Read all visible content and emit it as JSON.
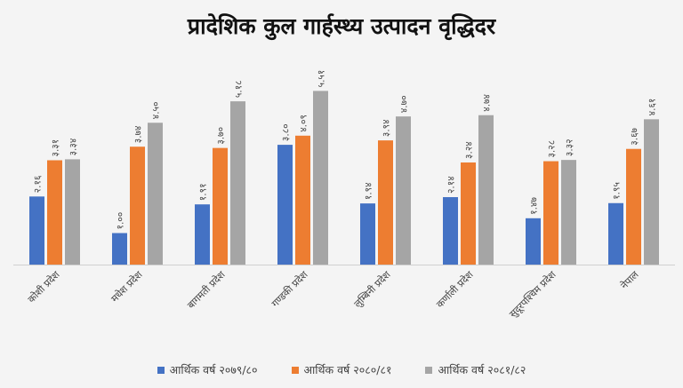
{
  "chart_data": {
    "type": "bar",
    "title": "प्रादेशिक कुल गार्हस्थ्य उत्पादन वृद्धिदर",
    "xlabel": "",
    "ylabel": "",
    "ylim": [
      0,
      6
    ],
    "grid": false,
    "legend_position": "bottom",
    "categories": [
      "कोशी प्रदेश",
      "मधेश प्रदेश",
      "बागमती प्रदेश",
      "गण्डकी प्रदेश",
      "लुम्बिनी प्रदेश",
      "कर्णाली प्रदेश",
      "सुदूरपश्चिम प्रदेश",
      "नेपाल"
    ],
    "series": [
      {
        "name": "आर्थिक वर्ष २०७९/८०",
        "color": "#4472c4",
        "values": [
          2.16,
          1.0,
          1.91,
          3.8,
          1.94,
          2.14,
          1.47,
          1.95
        ]
      },
      {
        "name": "आर्थिक वर्ष २०८०/८१",
        "color": "#ed7d31",
        "values": [
          3.31,
          3.74,
          3.7,
          4.09,
          3.94,
          3.24,
          3.28,
          3.67
        ]
      },
      {
        "name": "आर्थिक वर्ष २०८१/८२",
        "color": "#a5a5a5",
        "values": [
          3.34,
          4.5,
          5.18,
          5.51,
          4.7,
          4.74,
          3.32,
          4.61
        ]
      }
    ]
  }
}
